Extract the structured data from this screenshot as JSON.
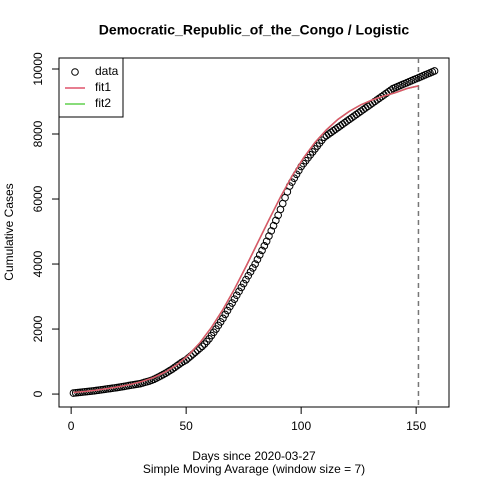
{
  "chart_data": {
    "type": "scatter",
    "title": "Democratic_Republic_of_the_Congo / Logistic",
    "x_label": "Days since 2020-03-27",
    "subtitle": "Simple Moving Avarage (window size = 7)",
    "y_label": "Cumulative Cases",
    "xlim": [
      -5.28,
      164.28
    ],
    "ylim": [
      -398,
      10338
    ],
    "xticks": [
      0,
      50,
      100,
      150
    ],
    "yticks": [
      0,
      2000,
      4000,
      6000,
      8000,
      10000
    ],
    "vline": 151,
    "legend": "top-left",
    "series": [
      {
        "name": "data",
        "color": "#000000",
        "mode": "points",
        "x": [
          1,
          2,
          3,
          4,
          5,
          6,
          7,
          8,
          9,
          10,
          11,
          12,
          13,
          14,
          15,
          16,
          17,
          18,
          19,
          20,
          21,
          22,
          23,
          24,
          25,
          26,
          27,
          28,
          29,
          30,
          31,
          32,
          33,
          34,
          35,
          36,
          37,
          38,
          39,
          40,
          41,
          42,
          43,
          44,
          45,
          46,
          47,
          48,
          49,
          50,
          51,
          52,
          53,
          54,
          55,
          56,
          57,
          58,
          59,
          60,
          61,
          62,
          63,
          64,
          65,
          66,
          67,
          68,
          69,
          70,
          71,
          72,
          73,
          74,
          75,
          76,
          77,
          78,
          79,
          80,
          81,
          82,
          83,
          84,
          85,
          86,
          87,
          88,
          89,
          90,
          91,
          92,
          93,
          94,
          95,
          96,
          97,
          98,
          99,
          100,
          101,
          102,
          103,
          104,
          105,
          106,
          107,
          108,
          109,
          110,
          111,
          112,
          113,
          114,
          115,
          116,
          117,
          118,
          119,
          120,
          121,
          122,
          123,
          124,
          125,
          126,
          127,
          128,
          129,
          130,
          131,
          132,
          133,
          134,
          135,
          136,
          137,
          138,
          139,
          140,
          141,
          142,
          143,
          144,
          145,
          146,
          147,
          148,
          149,
          150,
          151,
          152,
          153,
          154,
          155,
          156,
          157,
          158
        ],
        "values": [
          30,
          38,
          46,
          54,
          62,
          70,
          78,
          86,
          93,
          100,
          110,
          120,
          130,
          140,
          150,
          160,
          170,
          180,
          190,
          200,
          212,
          224,
          236,
          248,
          260,
          272,
          284,
          296,
          308,
          320,
          340,
          360,
          380,
          400,
          425,
          455,
          490,
          525,
          560,
          600,
          640,
          680,
          725,
          770,
          820,
          870,
          920,
          970,
          1010,
          1050,
          1110,
          1170,
          1230,
          1290,
          1350,
          1410,
          1470,
          1540,
          1620,
          1700,
          1800,
          1900,
          2000,
          2110,
          2220,
          2330,
          2450,
          2570,
          2690,
          2800,
          2920,
          3040,
          3160,
          3280,
          3400,
          3520,
          3640,
          3760,
          3880,
          4000,
          4140,
          4280,
          4420,
          4560,
          4700,
          4860,
          5020,
          5180,
          5340,
          5500,
          5680,
          5860,
          6040,
          6220,
          6400,
          6520,
          6640,
          6760,
          6880,
          7000,
          7090,
          7180,
          7270,
          7360,
          7450,
          7540,
          7630,
          7720,
          7810,
          7900,
          7950,
          8000,
          8050,
          8100,
          8150,
          8200,
          8250,
          8300,
          8350,
          8400,
          8450,
          8500,
          8550,
          8600,
          8650,
          8700,
          8750,
          8800,
          8850,
          8900,
          8950,
          9000,
          9050,
          9100,
          9150,
          9200,
          9250,
          9300,
          9350,
          9400,
          9430,
          9460,
          9490,
          9520,
          9550,
          9580,
          9610,
          9640,
          9670,
          9700,
          9730,
          9760,
          9790,
          9820,
          9850,
          9880,
          9910,
          9940
        ]
      },
      {
        "name": "fit2",
        "color": "#61d04f",
        "mode": "line",
        "x": [
          1,
          6,
          11,
          16,
          21,
          26,
          31,
          36,
          41,
          46,
          51,
          56,
          61,
          66,
          71,
          76,
          81,
          86,
          91,
          96,
          101,
          106,
          111,
          116,
          121,
          126,
          131,
          136,
          141,
          146,
          151
        ],
        "values": [
          50,
          80,
          120,
          170,
          230,
          300,
          390,
          510,
          680,
          900,
          1200,
          1580,
          2050,
          2600,
          3230,
          3920,
          4640,
          5360,
          6060,
          6700,
          7260,
          7740,
          8130,
          8450,
          8700,
          8900,
          9050,
          9170,
          9270,
          9400,
          9480
        ]
      },
      {
        "name": "fit1",
        "color": "#df536b",
        "mode": "line",
        "x": [
          1,
          6,
          11,
          16,
          21,
          26,
          31,
          36,
          41,
          46,
          51,
          56,
          61,
          66,
          71,
          76,
          81,
          86,
          91,
          96,
          101,
          106,
          111,
          116,
          121,
          126,
          131,
          136,
          141,
          146,
          151
        ],
        "values": [
          50,
          80,
          120,
          170,
          230,
          300,
          390,
          510,
          680,
          900,
          1200,
          1580,
          2050,
          2600,
          3230,
          3920,
          4640,
          5360,
          6060,
          6700,
          7260,
          7740,
          8130,
          8450,
          8700,
          8900,
          9050,
          9170,
          9270,
          9400,
          9480
        ]
      }
    ]
  }
}
